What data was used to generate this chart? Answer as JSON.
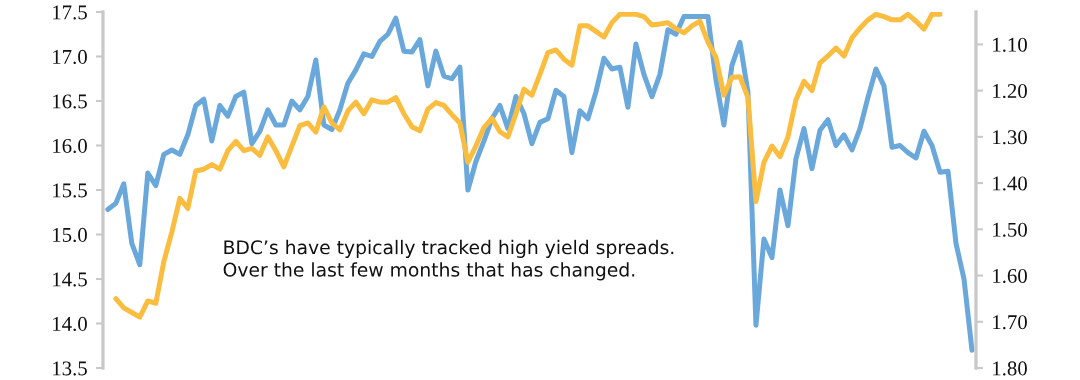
{
  "chart_data": {
    "type": "line",
    "categories": [
      null,
      null,
      null,
      null,
      null,
      null,
      null,
      null,
      null,
      null,
      null,
      null,
      null,
      null,
      null,
      null,
      null,
      null,
      null,
      null,
      null,
      null,
      null,
      null,
      null,
      null,
      null,
      null,
      null,
      null,
      null,
      null,
      null,
      null,
      null,
      null,
      null,
      null,
      null,
      null,
      null,
      null,
      null,
      null,
      null,
      null,
      null,
      null,
      null,
      null,
      null,
      null,
      null,
      null,
      null,
      null,
      null,
      null,
      null,
      null,
      null,
      null,
      null,
      null,
      null,
      null,
      null,
      null,
      null,
      null,
      null,
      null,
      null,
      null,
      null,
      null,
      null,
      null,
      null,
      null,
      null,
      null,
      null,
      null,
      null,
      null,
      null,
      null,
      null,
      null,
      null,
      null,
      null,
      null,
      null,
      null,
      null,
      null,
      null,
      null,
      null,
      null,
      null,
      null,
      null,
      null,
      null,
      null,
      null
    ],
    "series": [
      {
        "color": "#6aa8dc",
        "values": [
          15.28,
          15.35,
          15.57,
          14.9,
          14.66,
          15.69,
          15.55,
          15.9,
          15.95,
          15.9,
          16.12,
          16.45,
          16.52,
          16.05,
          16.45,
          16.33,
          16.55,
          16.6,
          16.02,
          16.16,
          16.4,
          16.23,
          16.23,
          16.5,
          16.4,
          16.55,
          16.96,
          16.23,
          16.18,
          16.4,
          16.7,
          16.85,
          17.03,
          17.0,
          17.17,
          17.25,
          17.43,
          17.06,
          17.05,
          17.19,
          16.67,
          17.06,
          16.78,
          16.75,
          16.88,
          15.5,
          15.82,
          16.05,
          16.3,
          16.45,
          16.19,
          16.55,
          16.36,
          16.02,
          16.26,
          16.3,
          16.62,
          16.55,
          15.92,
          16.39,
          16.3,
          16.6,
          16.98,
          16.86,
          16.88,
          16.43,
          17.14,
          16.8,
          16.55,
          16.8,
          17.3,
          17.25,
          17.45,
          17.45,
          17.45,
          17.45,
          16.74,
          16.23,
          16.9,
          17.16,
          16.6,
          13.98,
          14.95,
          14.74,
          15.5,
          15.1,
          15.85,
          16.19,
          15.74,
          16.17,
          16.29,
          16.0,
          16.12,
          15.95,
          16.19,
          16.54,
          16.86,
          16.67,
          15.98,
          16.0,
          15.92,
          15.86,
          16.16,
          16.0,
          15.7,
          15.71,
          14.9,
          14.5,
          13.7
        ]
      },
      {
        "color": "#fbbd3f",
        "axis": "y2",
        "values": [
          null,
          1.65,
          1.67,
          1.68,
          1.69,
          1.655,
          1.66,
          1.57,
          1.506,
          1.433,
          1.455,
          1.374,
          1.37,
          1.36,
          1.37,
          1.33,
          1.31,
          1.33,
          1.325,
          1.34,
          1.3,
          1.33,
          1.365,
          1.32,
          1.276,
          1.27,
          1.29,
          1.235,
          1.27,
          1.285,
          1.244,
          1.225,
          1.25,
          1.22,
          1.225,
          1.225,
          1.215,
          1.25,
          1.278,
          1.287,
          1.24,
          1.226,
          1.232,
          1.252,
          1.27,
          1.355,
          1.32,
          1.28,
          1.26,
          1.289,
          1.3,
          1.25,
          1.197,
          1.21,
          1.165,
          1.118,
          1.112,
          1.132,
          1.145,
          1.06,
          1.06,
          1.072,
          1.084,
          1.053,
          1.035,
          1.035,
          1.035,
          1.04,
          1.058,
          1.056,
          1.053,
          1.066,
          1.075,
          1.06,
          1.05,
          1.095,
          1.128,
          1.21,
          1.171,
          1.17,
          1.215,
          1.44,
          1.355,
          1.32,
          1.343,
          1.3,
          1.22,
          1.18,
          1.2,
          1.14,
          1.125,
          1.108,
          1.125,
          1.086,
          1.065,
          1.047,
          1.035,
          1.04,
          1.047,
          1.047,
          1.035,
          1.05,
          1.067,
          1.035,
          1.035,
          null,
          null,
          null,
          null
        ]
      }
    ],
    "ylim": [
      13.5,
      17.5
    ],
    "yticks": [
      {
        "value": 13.5,
        "label": "13.5"
      },
      {
        "value": 14.0,
        "label": "14.0"
      },
      {
        "value": 14.5,
        "label": "14.5"
      },
      {
        "value": 15.0,
        "label": "15.0"
      },
      {
        "value": 15.5,
        "label": "15.5"
      },
      {
        "value": 16.0,
        "label": "16.0"
      },
      {
        "value": 16.5,
        "label": "16.5"
      },
      {
        "value": 17.0,
        "label": "17.0"
      },
      {
        "value": 17.5,
        "label": "17.5"
      }
    ],
    "y2lim": [
      1.8,
      1.03
    ],
    "y2ticks": [
      {
        "value": 1.1,
        "label": "1.10"
      },
      {
        "value": 1.2,
        "label": "1.20"
      },
      {
        "value": 1.3,
        "label": "1.30"
      },
      {
        "value": 1.4,
        "label": "1.40"
      },
      {
        "value": 1.5,
        "label": "1.50"
      },
      {
        "value": 1.6,
        "label": "1.60"
      },
      {
        "value": 1.7,
        "label": "1.70"
      },
      {
        "value": 1.8,
        "label": "1.80"
      }
    ],
    "annotations": [
      "BDC’s have typically tracked high yield spreads. Over the last few months that has changed."
    ],
    "grid": false,
    "legend": false
  }
}
